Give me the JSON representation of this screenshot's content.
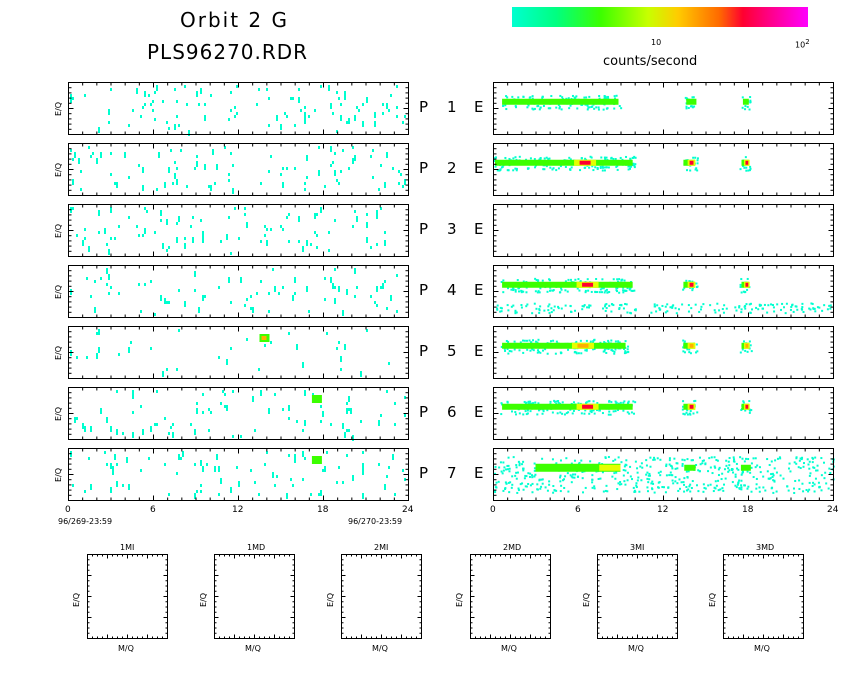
{
  "header": {
    "title_line1": "Orbit 2 G",
    "title_line2": "PLS96270.RDR"
  },
  "colorbar": {
    "tick_10": "10",
    "tick_100": "10",
    "tick_100_exp": "2",
    "label": "counts/second",
    "colors": [
      "#00ffd0",
      "#3cff00",
      "#ffcc00",
      "#ff0030",
      "#ff00ff"
    ]
  },
  "panels": {
    "ylabel": "E/Q",
    "rows": [
      {
        "left": "P",
        "num": "1",
        "right": "E"
      },
      {
        "left": "P",
        "num": "2",
        "right": "E"
      },
      {
        "left": "P",
        "num": "3",
        "right": "E"
      },
      {
        "left": "P",
        "num": "4",
        "right": "E"
      },
      {
        "left": "P",
        "num": "5",
        "right": "E"
      },
      {
        "left": "P",
        "num": "6",
        "right": "E"
      },
      {
        "left": "P",
        "num": "7",
        "right": "E"
      }
    ]
  },
  "time_axis": {
    "ticks": [
      "0",
      "6",
      "12",
      "18",
      "24"
    ],
    "start_label": "96/269-23:59",
    "end_label": "96/270-23:59"
  },
  "mass_panels": {
    "ylabel": "E/Q",
    "xlabel": "M/Q",
    "titles": [
      "1MI",
      "1MD",
      "2MI",
      "2MD",
      "3MI",
      "3MD"
    ]
  },
  "chart_data": {
    "type": "heatmap",
    "x_range": [
      0,
      24
    ],
    "x_unit": "hours",
    "color_scale": "log",
    "color_range": [
      1,
      100
    ],
    "color_label": "counts/second",
    "left_column": {
      "description_source": "P channels",
      "activity_level": [
        0.25,
        0.22,
        0.22,
        0.18,
        0.08,
        0.2,
        0.2
      ],
      "hotspots": [
        {
          "row": 5,
          "hour": 13.8,
          "level": "orange"
        },
        {
          "row": 6,
          "hour": 17.5,
          "level": "green"
        },
        {
          "row": 7,
          "hour": 17.5,
          "level": "green"
        }
      ]
    },
    "right_column": {
      "description_source": "E channels",
      "bursts": [
        {
          "row": 1,
          "hours": [
            [
              0.5,
              9
            ],
            [
              13.5,
              14.5
            ],
            [
              17.5,
              18.2
            ]
          ],
          "peak": "green"
        },
        {
          "row": 2,
          "hours": [
            [
              0,
              10
            ],
            [
              13.3,
              14.4
            ],
            [
              17.4,
              18.2
            ]
          ],
          "peak": "red"
        },
        {
          "row": 3,
          "hours": [],
          "peak": "none"
        },
        {
          "row": 4,
          "hours": [
            [
              0.5,
              10
            ],
            [
              13.3,
              14.4
            ],
            [
              17.4,
              18.2
            ]
          ],
          "peak": "red"
        },
        {
          "row": 5,
          "hours": [
            [
              0.5,
              9.5
            ],
            [
              13.3,
              14.4
            ],
            [
              17.4,
              18.2
            ]
          ],
          "peak": "orange"
        },
        {
          "row": 6,
          "hours": [
            [
              0.5,
              10
            ],
            [
              13.3,
              14.4
            ],
            [
              17.4,
              18.2
            ]
          ],
          "peak": "red"
        },
        {
          "row": 7,
          "hours": [
            [
              0,
              24
            ]
          ],
          "peak": "yellow"
        }
      ]
    }
  }
}
